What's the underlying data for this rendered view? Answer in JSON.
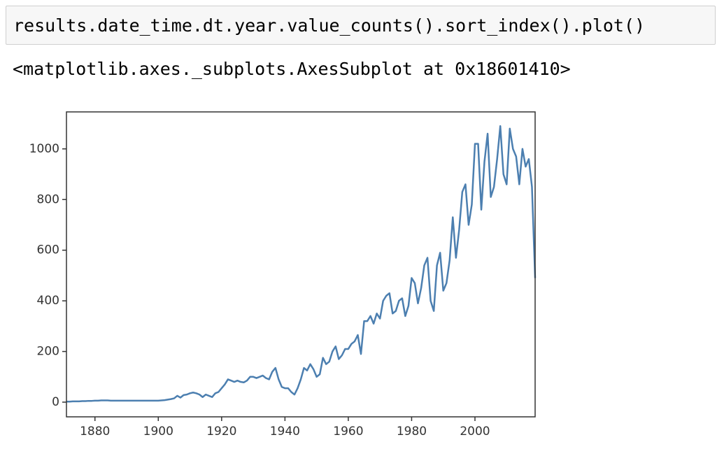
{
  "code": "results.date_time.dt.year.value_counts().sort_index().plot()",
  "output": "<matplotlib.axes._subplots.AxesSubplot at 0x18601410>",
  "chart_data": {
    "type": "line",
    "color": "#4c7fb0",
    "x": [
      1871,
      1872,
      1873,
      1874,
      1875,
      1876,
      1877,
      1878,
      1879,
      1880,
      1881,
      1882,
      1883,
      1884,
      1885,
      1886,
      1887,
      1888,
      1889,
      1890,
      1891,
      1892,
      1893,
      1894,
      1895,
      1896,
      1897,
      1898,
      1899,
      1900,
      1901,
      1902,
      1903,
      1904,
      1905,
      1906,
      1907,
      1908,
      1909,
      1910,
      1911,
      1912,
      1913,
      1914,
      1915,
      1916,
      1917,
      1918,
      1919,
      1920,
      1921,
      1922,
      1923,
      1924,
      1925,
      1926,
      1927,
      1928,
      1929,
      1930,
      1931,
      1932,
      1933,
      1934,
      1935,
      1936,
      1937,
      1938,
      1939,
      1940,
      1941,
      1942,
      1943,
      1944,
      1945,
      1946,
      1947,
      1948,
      1949,
      1950,
      1951,
      1952,
      1953,
      1954,
      1955,
      1956,
      1957,
      1958,
      1959,
      1960,
      1961,
      1962,
      1963,
      1964,
      1965,
      1966,
      1967,
      1968,
      1969,
      1970,
      1971,
      1972,
      1973,
      1974,
      1975,
      1976,
      1977,
      1978,
      1979,
      1980,
      1981,
      1982,
      1983,
      1984,
      1985,
      1986,
      1987,
      1988,
      1989,
      1990,
      1991,
      1992,
      1993,
      1994,
      1995,
      1996,
      1997,
      1998,
      1999,
      2000,
      2001,
      2002,
      2003,
      2004,
      2005,
      2006,
      2007,
      2008,
      2009,
      2010,
      2011,
      2012,
      2013,
      2014,
      2015,
      2016,
      2017,
      2018,
      2019
    ],
    "values": [
      2,
      2,
      3,
      3,
      3,
      4,
      4,
      5,
      5,
      6,
      6,
      7,
      7,
      7,
      6,
      6,
      6,
      6,
      6,
      6,
      6,
      6,
      6,
      6,
      6,
      6,
      6,
      6,
      6,
      6,
      7,
      8,
      10,
      12,
      15,
      25,
      18,
      28,
      30,
      35,
      38,
      35,
      30,
      20,
      30,
      25,
      20,
      35,
      40,
      55,
      70,
      90,
      85,
      80,
      85,
      80,
      78,
      85,
      100,
      100,
      95,
      100,
      105,
      95,
      90,
      120,
      135,
      90,
      60,
      55,
      55,
      40,
      30,
      55,
      90,
      135,
      125,
      150,
      130,
      100,
      110,
      175,
      150,
      160,
      200,
      220,
      170,
      185,
      210,
      210,
      230,
      240,
      265,
      190,
      320,
      320,
      340,
      310,
      350,
      330,
      400,
      420,
      430,
      350,
      360,
      400,
      410,
      340,
      380,
      490,
      470,
      390,
      450,
      540,
      570,
      400,
      360,
      540,
      590,
      440,
      470,
      560,
      730,
      570,
      680,
      830,
      860,
      700,
      780,
      1020,
      1020,
      760,
      950,
      1060,
      810,
      850,
      960,
      1090,
      900,
      860,
      1080,
      1000,
      970,
      860,
      1000,
      930,
      960,
      850,
      490
    ],
    "xlim": [
      1871,
      2019
    ],
    "xticks": [
      1880,
      1900,
      1920,
      1940,
      1960,
      1980,
      2000
    ],
    "ylim": [
      -58,
      1146
    ],
    "yticks": [
      0,
      200,
      400,
      600,
      800,
      1000
    ]
  }
}
